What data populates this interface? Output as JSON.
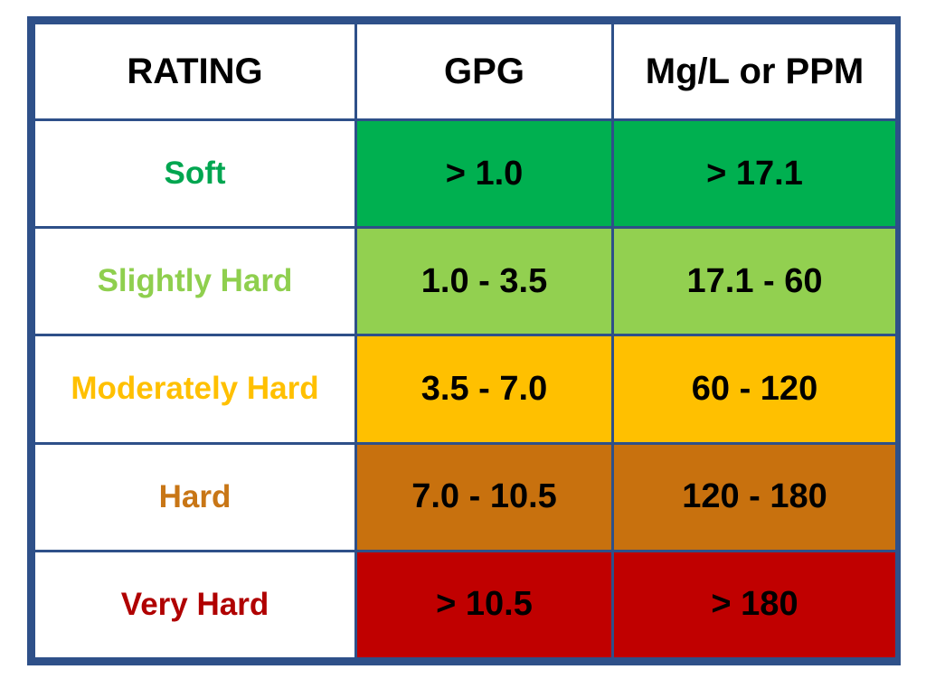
{
  "chart_data": {
    "type": "table",
    "columns": [
      "RATING",
      "GPG",
      "Mg/L or PPM"
    ],
    "rows": [
      {
        "rating": "Soft",
        "gpg": "> 1.0",
        "ppm": "> 17.1",
        "rating_color": "#00a650",
        "fill_color": "#00b050"
      },
      {
        "rating": "Slightly Hard",
        "gpg": "1.0 - 3.5",
        "ppm": "17.1 - 60",
        "rating_color": "#8fcf4e",
        "fill_color": "#92d050"
      },
      {
        "rating": "Moderately Hard",
        "gpg": "3.5 - 7.0",
        "ppm": "60 - 120",
        "rating_color": "#ffc000",
        "fill_color": "#ffc000"
      },
      {
        "rating": "Hard",
        "gpg": "7.0 - 10.5",
        "ppm": "120 - 180",
        "rating_color": "#c87616",
        "fill_color": "#c8710e"
      },
      {
        "rating": "Very Hard",
        "gpg": "> 10.5",
        "ppm": "> 180",
        "rating_color": "#b00000",
        "fill_color": "#c00000"
      }
    ]
  },
  "colors": {
    "border": "#2e5089",
    "header_bg": "#ffffff"
  }
}
